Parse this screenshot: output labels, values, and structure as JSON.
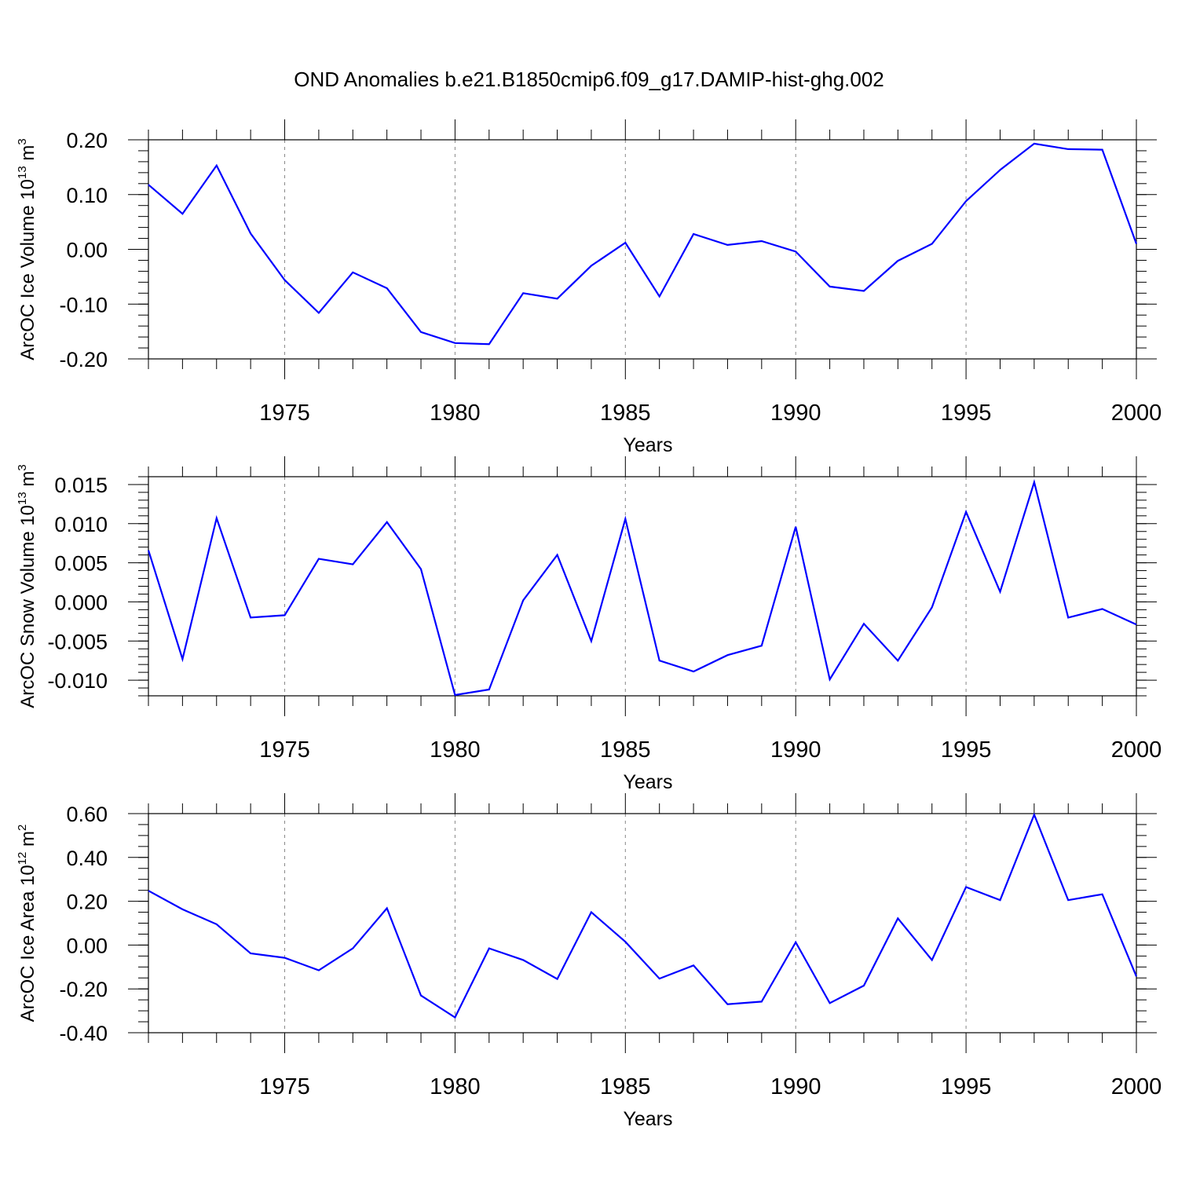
{
  "title": "OND Anomalies b.e21.B1850cmip6.f09_g17.DAMIP-hist-ghg.002",
  "chart_data": [
    {
      "type": "line",
      "title": "OND Anomalies b.e21.B1850cmip6.f09_g17.DAMIP-hist-ghg.002",
      "ylabel": {
        "text": "ArcOC Ice Volume 10",
        "exp": "13",
        "unit": " m",
        "unit_exp": "3"
      },
      "xlabel": "Years",
      "xlim": [
        1971,
        2000
      ],
      "ylim": [
        -0.2,
        0.2
      ],
      "yticks": [
        -0.2,
        -0.1,
        0.0,
        0.1,
        0.2
      ],
      "ytick_labels": [
        "-0.20",
        "-0.10",
        "0.00",
        "0.10",
        "0.20"
      ],
      "yminor_step": 0.02,
      "xticks": [
        1975,
        1980,
        1985,
        1990,
        1995,
        2000
      ],
      "xtick_labels": [
        "1975",
        "1980",
        "1985",
        "1990",
        "1995",
        "2000"
      ],
      "grid": "vertical dashed at major x ticks",
      "series": [
        {
          "name": "ArcOC Ice Volume",
          "color": "#0000ff",
          "x": [
            1971,
            1972,
            1973,
            1974,
            1975,
            1976,
            1977,
            1978,
            1979,
            1980,
            1981,
            1982,
            1983,
            1984,
            1985,
            1986,
            1987,
            1988,
            1989,
            1990,
            1991,
            1992,
            1993,
            1994,
            1995,
            1996,
            1997,
            1998,
            1999,
            2000
          ],
          "values": [
            0.118,
            0.065,
            0.153,
            0.029,
            -0.056,
            -0.116,
            -0.042,
            -0.071,
            -0.151,
            -0.171,
            -0.173,
            -0.08,
            -0.09,
            -0.03,
            0.012,
            -0.086,
            0.028,
            0.008,
            0.015,
            -0.004,
            -0.068,
            -0.076,
            -0.021,
            0.01,
            0.088,
            0.145,
            0.193,
            0.183,
            0.182,
            0.01
          ]
        }
      ]
    },
    {
      "type": "line",
      "ylabel": {
        "text": "ArcOC Snow Volume 10",
        "exp": "13",
        "unit": " m",
        "unit_exp": "3"
      },
      "xlabel": "Years",
      "xlim": [
        1971,
        2000
      ],
      "ylim": [
        -0.012,
        0.016
      ],
      "yticks": [
        -0.01,
        -0.005,
        0.0,
        0.005,
        0.01,
        0.015
      ],
      "ytick_labels": [
        "-0.010",
        "-0.005",
        "0.000",
        "0.005",
        "0.010",
        "0.015"
      ],
      "yminor_step": 0.001,
      "xticks": [
        1975,
        1980,
        1985,
        1990,
        1995,
        2000
      ],
      "xtick_labels": [
        "1975",
        "1980",
        "1985",
        "1990",
        "1995",
        "2000"
      ],
      "grid": "vertical dashed at major x ticks",
      "series": [
        {
          "name": "ArcOC Snow Volume",
          "color": "#0000ff",
          "x": [
            1971,
            1972,
            1973,
            1974,
            1975,
            1976,
            1977,
            1978,
            1979,
            1980,
            1981,
            1982,
            1983,
            1984,
            1985,
            1986,
            1987,
            1988,
            1989,
            1990,
            1991,
            1992,
            1993,
            1994,
            1995,
            1996,
            1997,
            1998,
            1999,
            2000
          ],
          "values": [
            0.0066,
            -0.0073,
            0.0107,
            -0.002,
            -0.0017,
            0.0055,
            0.0048,
            0.0102,
            0.0042,
            -0.0119,
            -0.0112,
            0.0002,
            0.006,
            -0.005,
            0.0106,
            -0.0075,
            -0.0089,
            -0.0068,
            -0.0056,
            0.0096,
            -0.0099,
            -0.0028,
            -0.0075,
            -0.0007,
            0.0115,
            0.0013,
            0.0153,
            -0.002,
            -0.0009,
            -0.0029
          ]
        }
      ]
    },
    {
      "type": "line",
      "ylabel": {
        "text": "ArcOC Ice Area 10",
        "exp": "12",
        "unit": " m",
        "unit_exp": "2"
      },
      "xlabel": "Years",
      "xlim": [
        1971,
        2000
      ],
      "ylim": [
        -0.4,
        0.6
      ],
      "yticks": [
        -0.4,
        -0.2,
        0.0,
        0.2,
        0.4,
        0.6
      ],
      "ytick_labels": [
        "-0.40",
        "-0.20",
        "0.00",
        "0.20",
        "0.40",
        "0.60"
      ],
      "yminor_step": 0.05,
      "xticks": [
        1975,
        1980,
        1985,
        1990,
        1995,
        2000
      ],
      "xtick_labels": [
        "1975",
        "1980",
        "1985",
        "1990",
        "1995",
        "2000"
      ],
      "grid": "vertical dashed at major x ticks",
      "series": [
        {
          "name": "ArcOC Ice Area",
          "color": "#0000ff",
          "x": [
            1971,
            1972,
            1973,
            1974,
            1975,
            1976,
            1977,
            1978,
            1979,
            1980,
            1981,
            1982,
            1983,
            1984,
            1985,
            1986,
            1987,
            1988,
            1989,
            1990,
            1991,
            1992,
            1993,
            1994,
            1995,
            1996,
            1997,
            1998,
            1999,
            2000
          ],
          "values": [
            0.248,
            0.163,
            0.095,
            -0.038,
            -0.058,
            -0.115,
            -0.015,
            0.168,
            -0.23,
            -0.33,
            -0.015,
            -0.068,
            -0.155,
            0.15,
            0.015,
            -0.153,
            -0.093,
            -0.27,
            -0.258,
            0.013,
            -0.265,
            -0.185,
            0.122,
            -0.068,
            0.265,
            0.205,
            0.595,
            0.205,
            0.232,
            -0.143
          ]
        }
      ]
    }
  ]
}
